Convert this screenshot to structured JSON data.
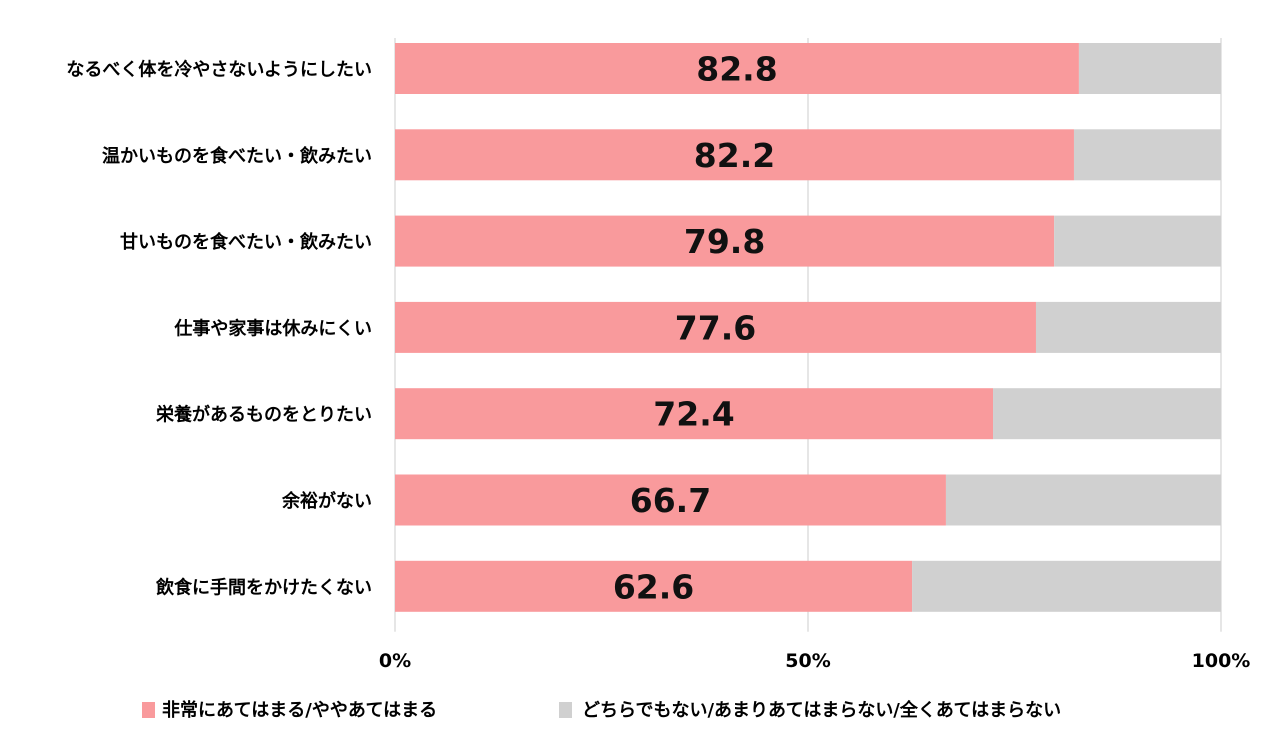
{
  "chart_data": {
    "type": "bar",
    "orientation": "horizontal",
    "stacked": "percent",
    "categories": [
      "なるべく体を冷やさないようにしたい",
      "温かいものを食べたい・飲みたい",
      "甘いものを食べたい・飲みたい",
      "仕事や家事は休みにくい",
      "栄養があるものをとりたい",
      "余裕がない",
      "飲食に手間をかけたくない"
    ],
    "series": [
      {
        "name": "非常にあてはまる/ややあてはまる",
        "color": "#F99A9C",
        "values": [
          82.8,
          82.2,
          79.8,
          77.6,
          72.4,
          66.7,
          62.6
        ],
        "labels": [
          "82.8",
          "82.2",
          "79.8",
          "77.6",
          "72.4",
          "66.7",
          "62.6"
        ]
      },
      {
        "name": "どちらでもない/あまりあてはまらない/全くあてはまらない",
        "color": "#D0D0D0",
        "values": [
          17.2,
          17.8,
          20.2,
          22.4,
          27.6,
          33.3,
          37.4
        ]
      }
    ],
    "xlim": [
      0,
      100
    ],
    "xticks": [
      "0%",
      "50%",
      "100%"
    ],
    "grid": true,
    "legend": "bottom"
  }
}
